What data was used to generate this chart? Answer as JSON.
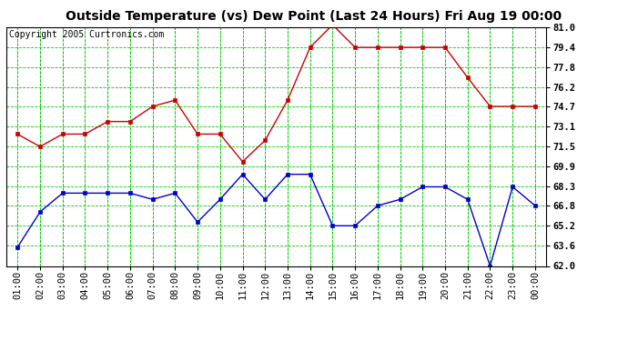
{
  "title": "Outside Temperature (vs) Dew Point (Last 24 Hours) Fri Aug 19 00:00",
  "copyright": "Copyright 2005 Curtronics.com",
  "x_labels": [
    "01:00",
    "02:00",
    "03:00",
    "04:00",
    "05:00",
    "06:00",
    "07:00",
    "08:00",
    "09:00",
    "10:00",
    "11:00",
    "12:00",
    "13:00",
    "14:00",
    "15:00",
    "16:00",
    "17:00",
    "18:00",
    "19:00",
    "20:00",
    "21:00",
    "22:00",
    "23:00",
    "00:00"
  ],
  "temp_data": [
    72.5,
    71.5,
    72.5,
    72.5,
    73.5,
    73.5,
    74.7,
    75.2,
    72.5,
    72.5,
    70.3,
    72.0,
    75.2,
    79.4,
    81.2,
    79.4,
    79.4,
    79.4,
    79.4,
    79.4,
    77.0,
    74.7,
    74.7,
    74.7
  ],
  "dew_data": [
    63.5,
    66.3,
    67.8,
    67.8,
    67.8,
    67.8,
    67.3,
    67.8,
    65.5,
    67.3,
    69.3,
    67.3,
    69.3,
    69.3,
    65.2,
    65.2,
    66.8,
    67.3,
    68.3,
    68.3,
    67.3,
    62.0,
    68.3,
    66.8
  ],
  "temp_color": "#cc0000",
  "dew_color": "#0000cc",
  "bg_color": "#ffffff",
  "plot_bg": "#ffffff",
  "grid_color": "#00cc00",
  "ylim_min": 62.0,
  "ylim_max": 81.0,
  "yticks": [
    62.0,
    63.6,
    65.2,
    66.8,
    68.3,
    69.9,
    71.5,
    73.1,
    74.7,
    76.2,
    77.8,
    79.4,
    81.0
  ],
  "title_fontsize": 10,
  "copyright_fontsize": 7,
  "tick_fontsize": 7.5
}
